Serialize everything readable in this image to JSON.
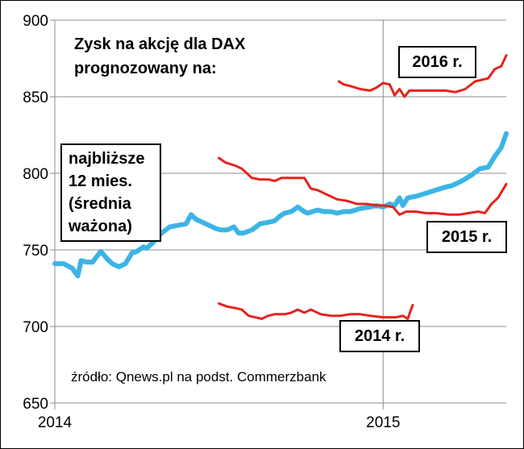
{
  "chart_data": {
    "type": "line",
    "title_lines": [
      "Zysk na akcję dla DAX",
      "prognozowany na:"
    ],
    "source": "źródło: Qnews.pl na podst. Commerzbank",
    "ylim": [
      650,
      900
    ],
    "yticks": [
      650,
      700,
      750,
      800,
      850,
      900
    ],
    "xlim": [
      2014.0,
      2015.375
    ],
    "xticks": [
      {
        "value": 2014,
        "label": "2014"
      },
      {
        "value": 2015,
        "label": "2015"
      }
    ],
    "grid": {
      "vertical_at": [
        2015
      ],
      "horizontal": true
    },
    "series": [
      {
        "name": "najbliższe 12 mies. (średnia ważona)",
        "label_lines": [
          "najbliższe",
          "12 mies.",
          "(średnia",
          "ważona)"
        ],
        "color": "#3cb4e6",
        "x": [
          2014.0,
          2014.027,
          2014.053,
          2014.07,
          2014.08,
          2014.098,
          2014.115,
          2014.14,
          2014.16,
          2014.175,
          2014.195,
          2014.215,
          2014.235,
          2014.25,
          2014.27,
          2014.28,
          2014.3,
          2014.325,
          2014.35,
          2014.375,
          2014.4,
          2014.415,
          2014.43,
          2014.45,
          2014.47,
          2014.49,
          2014.505,
          2014.525,
          2014.545,
          2014.56,
          2014.575,
          2014.6,
          2014.625,
          2014.65,
          2014.67,
          2014.685,
          2014.7,
          2014.72,
          2014.74,
          2014.76,
          2014.77,
          2014.785,
          2014.8,
          2014.82,
          2014.84,
          2014.86,
          2014.88,
          2014.9,
          2014.93,
          2014.96,
          2014.98,
          2015.0,
          2015.02,
          2015.035,
          2015.05,
          2015.06,
          2015.075,
          2015.1,
          2015.13,
          2015.16,
          2015.19,
          2015.21,
          2015.24,
          2015.27,
          2015.295,
          2015.32,
          2015.34,
          2015.36,
          2015.375
        ],
        "values": [
          741,
          741,
          738,
          733,
          743,
          742,
          742,
          749,
          744,
          741,
          739,
          741,
          748,
          749,
          752,
          751,
          755,
          761,
          765,
          766,
          767,
          773,
          770,
          768,
          766,
          764,
          763,
          763,
          765,
          761,
          761,
          763,
          767,
          768,
          769,
          772,
          774,
          775,
          778,
          775,
          774,
          775,
          776,
          775,
          775,
          774,
          775,
          775,
          777,
          778,
          779,
          778,
          780,
          779,
          784,
          779,
          784,
          785,
          787,
          789,
          791,
          792,
          795,
          799,
          803,
          804,
          811,
          817,
          826
        ]
      },
      {
        "name": "2016 r.",
        "color": "#e5231c",
        "x": [
          2014.865,
          2014.88,
          2014.9,
          2014.93,
          2014.96,
          2014.98,
          2015.0,
          2015.02,
          2015.035,
          2015.05,
          2015.065,
          2015.08,
          2015.1,
          2015.13,
          2015.16,
          2015.19,
          2015.22,
          2015.25,
          2015.28,
          2015.3,
          2015.32,
          2015.34,
          2015.36,
          2015.375
        ],
        "values": [
          860,
          858,
          857,
          855,
          854,
          856,
          859,
          858,
          851,
          855,
          850,
          854,
          854,
          854,
          854,
          854,
          853,
          855,
          860,
          861,
          862,
          868,
          870,
          877
        ]
      },
      {
        "name": "2015 r.",
        "color": "#e5231c",
        "x": [
          2014.5,
          2014.52,
          2014.55,
          2014.57,
          2014.6,
          2014.625,
          2014.65,
          2014.67,
          2014.69,
          2014.71,
          2014.74,
          2014.76,
          2014.78,
          2014.8,
          2014.83,
          2014.86,
          2014.89,
          2014.92,
          2014.95,
          2014.98,
          2015.0,
          2015.03,
          2015.05,
          2015.07,
          2015.1,
          2015.13,
          2015.16,
          2015.2,
          2015.23,
          2015.26,
          2015.29,
          2015.31,
          2015.33,
          2015.35,
          2015.375
        ],
        "values": [
          810,
          807,
          805,
          803,
          797,
          796,
          796,
          795,
          797,
          797,
          797,
          797,
          790,
          789,
          786,
          783,
          782,
          780,
          780,
          779,
          779,
          778,
          773,
          775,
          775,
          774,
          774,
          773,
          773,
          774,
          775,
          774,
          780,
          784,
          793
        ]
      },
      {
        "name": "2014 r.",
        "color": "#e5231c",
        "x": [
          2014.5,
          2014.525,
          2014.55,
          2014.57,
          2014.59,
          2014.61,
          2014.63,
          2014.65,
          2014.67,
          2014.7,
          2014.72,
          2014.74,
          2014.76,
          2014.78,
          2014.81,
          2014.84,
          2014.87,
          2014.9,
          2014.93,
          2014.96,
          2015.0,
          2015.04,
          2015.06,
          2015.075,
          2015.09
        ],
        "values": [
          715,
          713,
          712,
          711,
          707,
          706,
          705,
          707,
          708,
          708,
          709,
          711,
          709,
          711,
          708,
          707,
          707,
          708,
          708,
          707,
          706,
          706,
          707,
          705,
          714
        ]
      }
    ]
  }
}
